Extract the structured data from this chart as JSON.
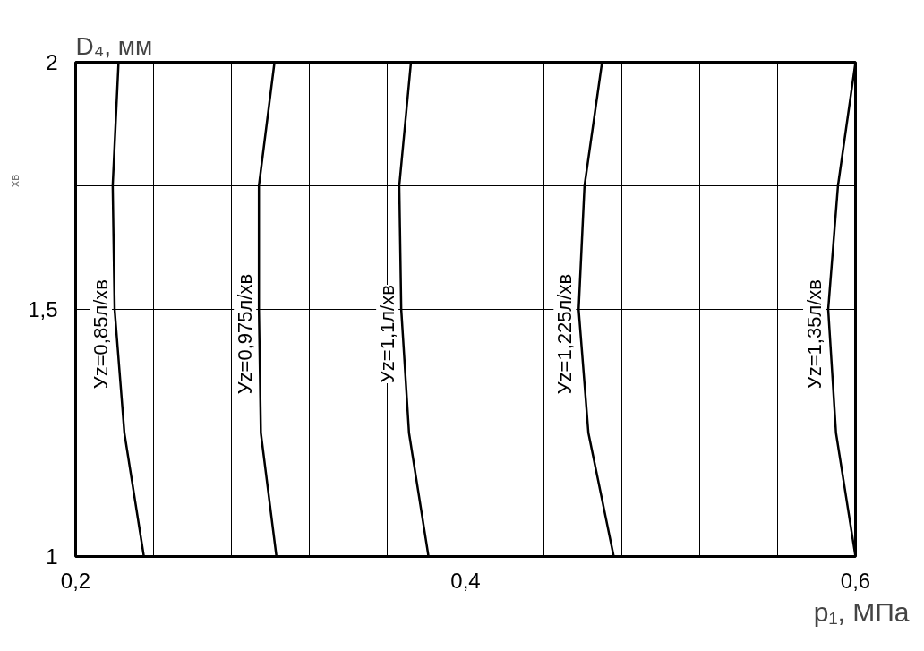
{
  "chart_data": {
    "type": "line",
    "xlabel": "p₁, МПа",
    "ylabel": "D₄, мм",
    "xlim": [
      0.2,
      0.6
    ],
    "ylim": [
      1,
      2
    ],
    "xticks": [
      {
        "value": 0.2,
        "label": "0,2"
      },
      {
        "value": 0.24,
        "label": null
      },
      {
        "value": 0.28,
        "label": null
      },
      {
        "value": 0.32,
        "label": null
      },
      {
        "value": 0.36,
        "label": null
      },
      {
        "value": 0.4,
        "label": "0,4"
      },
      {
        "value": 0.44,
        "label": null
      },
      {
        "value": 0.48,
        "label": null
      },
      {
        "value": 0.52,
        "label": null
      },
      {
        "value": 0.56,
        "label": null
      },
      {
        "value": 0.6,
        "label": "0,6"
      }
    ],
    "yticks": [
      1,
      {
        "value": 1.25,
        "label": null
      },
      {
        "value": 1.5,
        "label": "1,5"
      },
      {
        "value": 1.75,
        "label": null
      },
      2
    ],
    "grid": true,
    "legend": false,
    "marker": "none",
    "line_style": "solid",
    "annotations": [
      "хв"
    ],
    "series": [
      {
        "name": "Уz=0,85л/хв",
        "color": "#000000",
        "x": [
          0.235,
          0.225,
          0.22,
          0.219,
          0.222
        ],
        "values": [
          1,
          1.25,
          1.5,
          1.75,
          2
        ]
      },
      {
        "name": "Уz=0,975л/хв",
        "color": "#000000",
        "x": [
          0.303,
          0.295,
          0.294,
          0.294,
          0.302
        ],
        "values": [
          1,
          1.25,
          1.5,
          1.75,
          2
        ]
      },
      {
        "name": "Уz=1,1л/хв",
        "color": "#000000",
        "x": [
          0.381,
          0.371,
          0.367,
          0.366,
          0.372
        ],
        "values": [
          1,
          1.25,
          1.5,
          1.75,
          2
        ]
      },
      {
        "name": "Уz=1,225л/хв",
        "color": "#000000",
        "x": [
          0.476,
          0.463,
          0.458,
          0.461,
          0.47
        ],
        "values": [
          1,
          1.25,
          1.5,
          1.75,
          2
        ]
      },
      {
        "name": "Уz=1,35л/хв",
        "color": "#000000",
        "x": [
          0.6,
          0.59,
          0.586,
          0.591,
          0.6
        ],
        "values": [
          1,
          1.25,
          1.5,
          1.75,
          2
        ]
      }
    ]
  }
}
